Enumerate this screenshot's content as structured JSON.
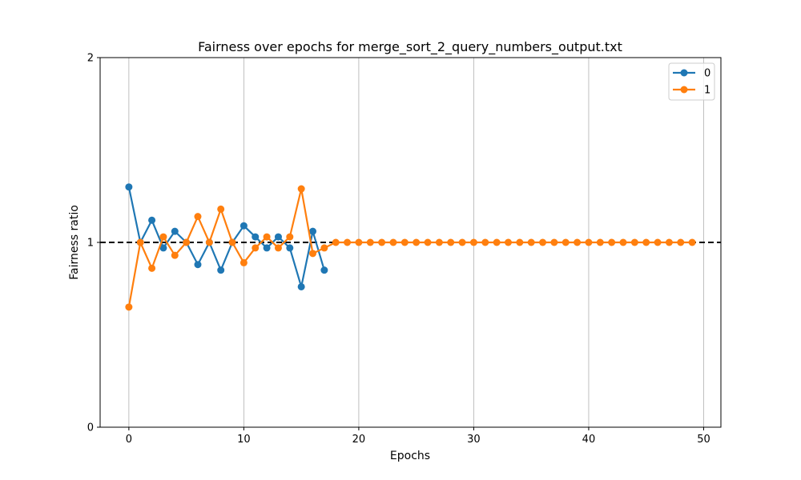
{
  "chart_data": {
    "type": "line",
    "title": "Fairness over epochs for merge_sort_2_query_numbers_output.txt",
    "xlabel": "Epochs",
    "ylabel": "Fairness ratio",
    "xlim": [
      -2.5,
      51.5
    ],
    "ylim": [
      0,
      2
    ],
    "xticks": [
      0,
      10,
      20,
      30,
      40,
      50
    ],
    "yticks": [
      0,
      1,
      2
    ],
    "grid": "x-only",
    "legend_position": "top-right",
    "reference_line": {
      "y": 1,
      "style": "dashed",
      "color": "#000000"
    },
    "series": [
      {
        "name": "0",
        "color": "#1f77b4",
        "x": [
          0,
          1,
          2,
          3,
          4,
          5,
          6,
          7,
          8,
          9,
          10,
          11,
          12,
          13,
          14,
          15,
          16,
          17
        ],
        "values": [
          1.3,
          1.0,
          1.12,
          0.97,
          1.06,
          1.0,
          0.88,
          1.0,
          0.85,
          1.0,
          1.09,
          1.03,
          0.97,
          1.03,
          0.97,
          0.76,
          1.06,
          0.85
        ]
      },
      {
        "name": "1",
        "color": "#ff7f0e",
        "x": [
          0,
          1,
          2,
          3,
          4,
          5,
          6,
          7,
          8,
          9,
          10,
          11,
          12,
          13,
          14,
          15,
          16,
          17,
          18,
          19,
          20,
          21,
          22,
          23,
          24,
          25,
          26,
          27,
          28,
          29,
          30,
          31,
          32,
          33,
          34,
          35,
          36,
          37,
          38,
          39,
          40,
          41,
          42,
          43,
          44,
          45,
          46,
          47,
          48,
          49
        ],
        "values": [
          0.65,
          1.0,
          0.86,
          1.03,
          0.93,
          1.0,
          1.14,
          1.0,
          1.18,
          1.0,
          0.89,
          0.97,
          1.03,
          0.97,
          1.03,
          1.29,
          0.94,
          0.97,
          1.0,
          1.0,
          1.0,
          1.0,
          1.0,
          1.0,
          1.0,
          1.0,
          1.0,
          1.0,
          1.0,
          1.0,
          1.0,
          1.0,
          1.0,
          1.0,
          1.0,
          1.0,
          1.0,
          1.0,
          1.0,
          1.0,
          1.0,
          1.0,
          1.0,
          1.0,
          1.0,
          1.0,
          1.0,
          1.0,
          1.0,
          1.0
        ]
      }
    ]
  }
}
